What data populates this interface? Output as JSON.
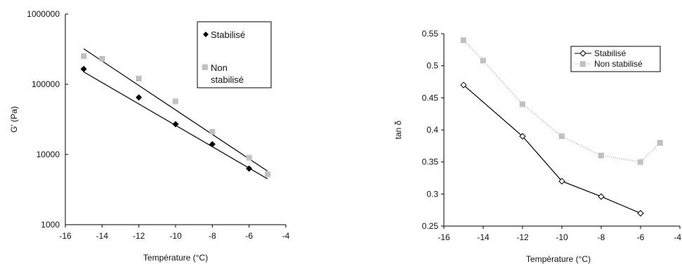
{
  "chart_data": [
    {
      "type": "scatter",
      "xlabel": "Température (°C)",
      "ylabel": "G' (Pa)",
      "yscale": "log",
      "xlim": [
        -16,
        -4
      ],
      "ylim": [
        1000,
        1000000
      ],
      "xticks": [
        "-16",
        "-14",
        "-12",
        "-10",
        "-8",
        "-6",
        "-4"
      ],
      "yticks": [
        "1000",
        "10000",
        "100000",
        "1000000"
      ],
      "legend_position": "top-right",
      "series": [
        {
          "name": "Stabilisé",
          "color": "#000000",
          "marker": "diamond-filled",
          "x": [
            -15,
            -12,
            -10,
            -8,
            -6
          ],
          "y": [
            165000,
            65000,
            27000,
            14000,
            6300
          ],
          "trendline": {
            "x": [
              -15,
              -5
            ],
            "y": [
              150000,
              4500
            ]
          }
        },
        {
          "name": "Non stabilisé",
          "legend_lines": [
            "Non",
            "stabilisé"
          ],
          "color": "#999999",
          "marker": "square-hatched",
          "x": [
            -15,
            -14,
            -12,
            -10,
            -8,
            -6,
            -5
          ],
          "y": [
            250000,
            230000,
            120000,
            57000,
            21000,
            9000,
            5200
          ],
          "trendline": {
            "x": [
              -15,
              -5
            ],
            "y": [
              320000,
              5800
            ]
          }
        }
      ]
    },
    {
      "type": "line",
      "xlabel": "Température (°C)",
      "ylabel": "tan δ",
      "xlim": [
        -16,
        -4
      ],
      "ylim": [
        0.25,
        0.55
      ],
      "xticks": [
        "-16",
        "-14",
        "-12",
        "-10",
        "-8",
        "-6",
        "-4"
      ],
      "yticks": [
        "0.25",
        "0.3",
        "0.35",
        "0.4",
        "0.45",
        "0.5",
        "0.55"
      ],
      "legend_position": "top-right",
      "series": [
        {
          "name": "Stabilisé",
          "color": "#000000",
          "marker": "diamond-open",
          "line": "solid",
          "x": [
            -15,
            -12,
            -10,
            -8,
            -6
          ],
          "y": [
            0.47,
            0.39,
            0.32,
            0.296,
            0.27
          ]
        },
        {
          "name": "Non stabilisé",
          "color": "#888888",
          "marker": "square-hatched",
          "line": "dotted",
          "x": [
            -15,
            -14,
            -12,
            -10,
            -8,
            -6,
            -5
          ],
          "y": [
            0.54,
            0.508,
            0.44,
            0.39,
            0.36,
            0.35,
            0.38
          ]
        }
      ]
    }
  ]
}
